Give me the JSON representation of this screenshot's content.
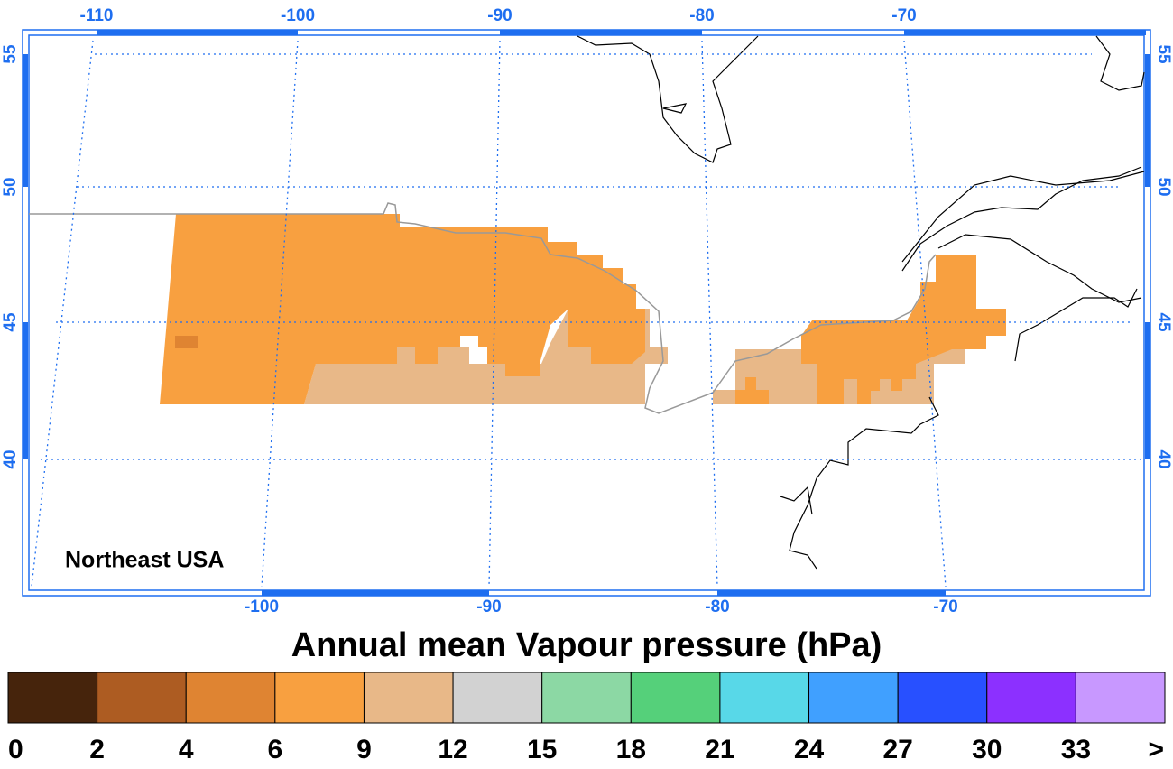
{
  "map": {
    "title": "Annual mean Vapour pressure (hPa)",
    "region_label": "Northeast USA",
    "top_lon_labels": [
      -110,
      -100,
      -90,
      -80,
      -70
    ],
    "bottom_lon_labels": [
      -100,
      -90,
      -80,
      -70
    ],
    "left_lat_labels": [
      55,
      50,
      45,
      40
    ],
    "right_lat_labels": [
      55,
      50,
      45,
      40
    ]
  },
  "legend": {
    "colors": [
      "#46240c",
      "#ad5c22",
      "#df8432",
      "#f8a040",
      "#e8b888",
      "#d2d2d2",
      "#8cd8a4",
      "#55d07a",
      "#58d8e8",
      "#40a0ff",
      "#2850ff",
      "#8c30ff",
      "#c898ff"
    ],
    "labels": [
      0,
      2,
      4,
      6,
      9,
      12,
      15,
      18,
      21,
      24,
      27,
      30,
      33,
      ">"
    ]
  }
}
